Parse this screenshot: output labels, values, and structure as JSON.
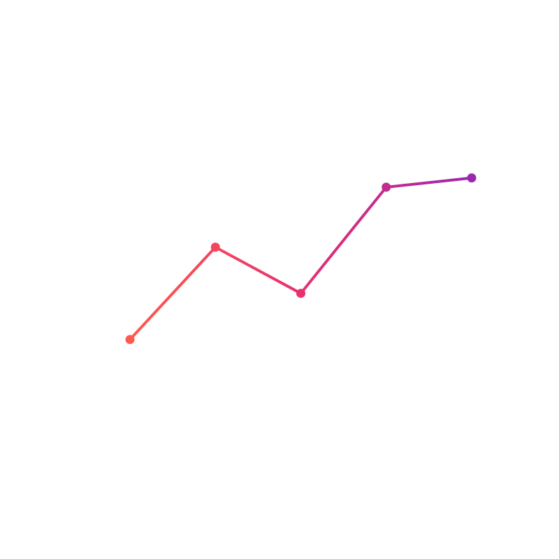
{
  "chart_data": {
    "type": "line",
    "title": "",
    "xlabel": "",
    "ylabel": "",
    "x": [
      1,
      2,
      3,
      4,
      5
    ],
    "series": [
      {
        "values": [
          2,
          6,
          4,
          8.6,
          9
        ]
      }
    ],
    "ylim": [
      -6.6,
      15.8
    ],
    "grid": false,
    "legend": "none",
    "axes_visible": false,
    "colors": {
      "gradient_start": "#ff5a4e",
      "gradient_mid": "#e8306f",
      "gradient_end": "#9c27b0"
    }
  }
}
